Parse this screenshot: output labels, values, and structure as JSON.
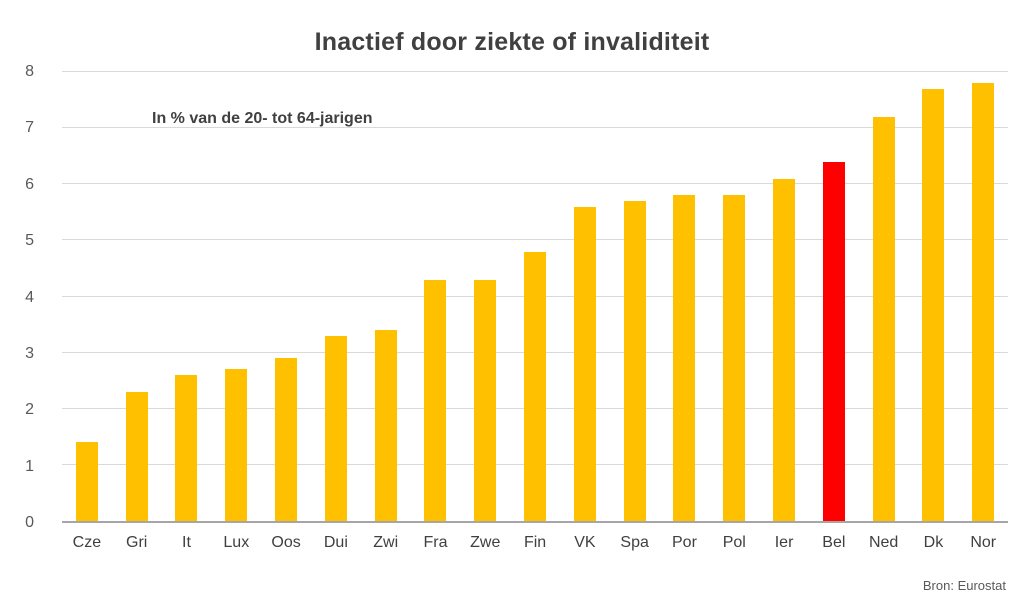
{
  "chart": {
    "title": "Inactief door ziekte of invaliditeit",
    "subtitle": "In % van de 20- tot 64-jarigen",
    "source": "Bron: Eurostat"
  },
  "chart_data": {
    "type": "bar",
    "title": "Inactief door ziekte of invaliditeit",
    "subtitle": "In % van de 20- tot 64-jarigen",
    "source": "Bron: Eurostat",
    "categories": [
      "Cze",
      "Gri",
      "It",
      "Lux",
      "Oos",
      "Dui",
      "Zwi",
      "Fra",
      "Zwe",
      "Fin",
      "VK",
      "Spa",
      "Por",
      "Pol",
      "Ier",
      "Bel",
      "Ned",
      "Dk",
      "Nor"
    ],
    "values": [
      1.4,
      2.3,
      2.6,
      2.7,
      2.9,
      3.3,
      3.4,
      4.3,
      4.3,
      4.8,
      5.6,
      5.7,
      5.8,
      5.8,
      6.1,
      6.4,
      7.2,
      7.7,
      7.8
    ],
    "bar_color": "#ffc000",
    "highlight": {
      "category": "Bel",
      "color": "#ff0000"
    },
    "xlabel": "",
    "ylabel": "",
    "ylim": [
      0,
      8
    ],
    "yticks": [
      0,
      1,
      2,
      3,
      4,
      5,
      6,
      7,
      8
    ],
    "grid": true,
    "legend": "none",
    "grid_color": "#d9d9d9",
    "axis_color": "#a6a6a6",
    "text_color": "#404040",
    "tick_color": "#595959"
  }
}
